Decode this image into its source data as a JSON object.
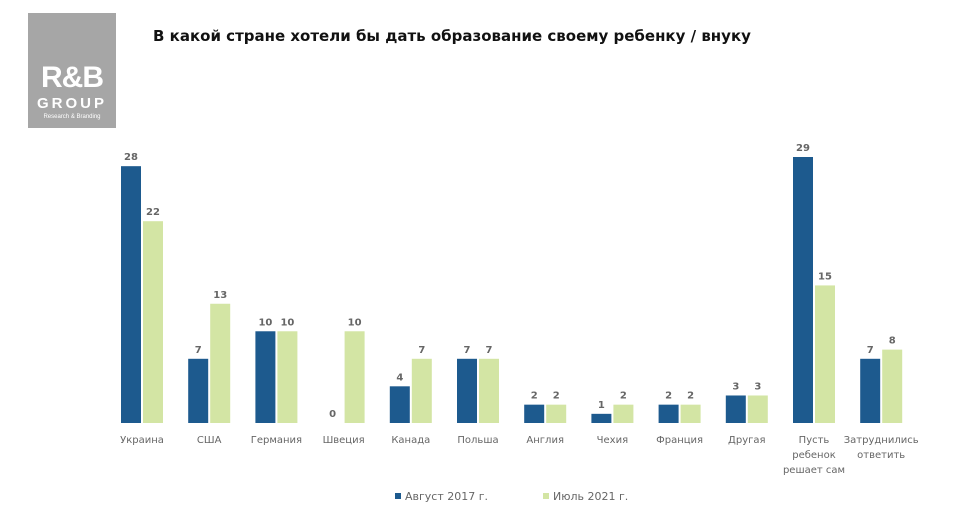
{
  "logo": {
    "brand": "R&B",
    "group": "GROUP",
    "tagline": "Research & Branding"
  },
  "chart_data": {
    "type": "bar",
    "title": "В какой стране хотели бы дать образование своему ребенку / внуку",
    "categories": [
      "Украина",
      "США",
      "Германия",
      "Швеция",
      "Канада",
      "Польша",
      "Англия",
      "Чехия",
      "Франция",
      "Другая",
      "Пусть ребенок решает сам",
      "Затруднились ответить"
    ],
    "category_lines": [
      [
        "Украина"
      ],
      [
        "США"
      ],
      [
        "Германия"
      ],
      [
        "Швеция"
      ],
      [
        "Канада"
      ],
      [
        "Польша"
      ],
      [
        "Англия"
      ],
      [
        "Чехия"
      ],
      [
        "Франция"
      ],
      [
        "Другая"
      ],
      [
        "Пусть",
        "ребенок",
        "решает сам"
      ],
      [
        "Затруднились",
        "ответить"
      ]
    ],
    "series": [
      {
        "name": "Август 2017 г.",
        "color": "#1d5a8e",
        "values": [
          28,
          7,
          10,
          0,
          4,
          7,
          2,
          1,
          2,
          3,
          29,
          7
        ]
      },
      {
        "name": "Июль 2021 г.",
        "color": "#d3e5a4",
        "values": [
          22,
          13,
          10,
          10,
          7,
          7,
          2,
          2,
          2,
          3,
          15,
          8
        ]
      }
    ],
    "ylim": [
      0,
      29
    ],
    "legend": "bottom",
    "grid": false
  }
}
